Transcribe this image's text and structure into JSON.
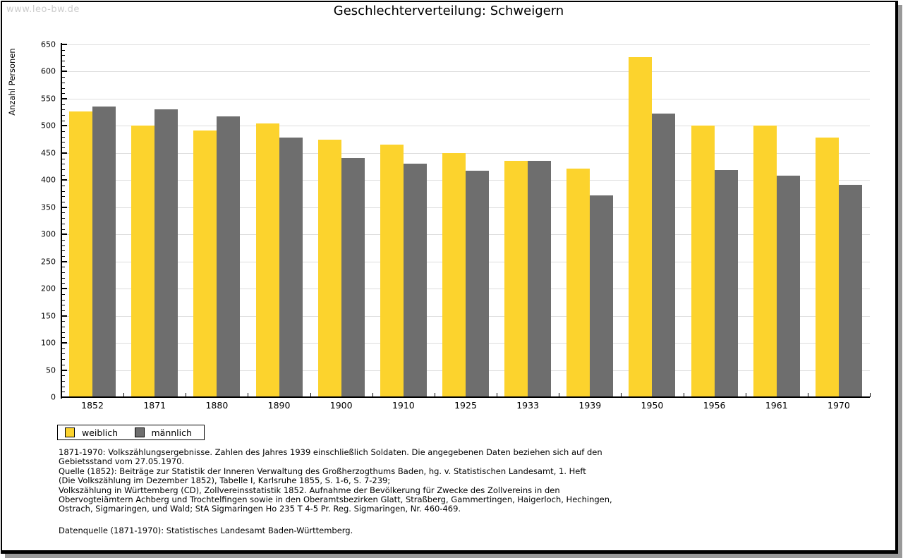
{
  "page": {
    "watermark": "www.leo-bw.de",
    "title": "Geschlechterverteilung: Schweigern"
  },
  "chart_data": {
    "type": "bar",
    "title": "Geschlechterverteilung: Schweigern",
    "xlabel": "",
    "ylabel": "Anzahl Personen",
    "ylim": [
      0,
      650
    ],
    "ytick_step": 50,
    "yminor_step": 10,
    "grid": true,
    "legend_position": "bottom-left",
    "categories": [
      "1852",
      "1871",
      "1880",
      "1890",
      "1900",
      "1910",
      "1925",
      "1933",
      "1939",
      "1950",
      "1956",
      "1961",
      "1970"
    ],
    "series": [
      {
        "name": "weiblich",
        "color": "#FCD32D",
        "values": [
          526,
          500,
          491,
          504,
          474,
          466,
          450,
          436,
          421,
          626,
          501,
          500,
          478
        ]
      },
      {
        "name": "männlich",
        "color": "#6E6E6E",
        "values": [
          535,
          531,
          518,
          478,
          441,
          430,
          417,
          435,
          372,
          523,
          419,
          408,
          391
        ]
      }
    ]
  },
  "legend": {
    "items": [
      {
        "label": "weiblich",
        "color": "#FCD32D"
      },
      {
        "label": "männlich",
        "color": "#6E6E6E"
      }
    ]
  },
  "footer": {
    "notes": [
      "1871-1970: Volkszählungsergebnisse. Zahlen des Jahres 1939 einschließlich Soldaten. Die angegebenen Daten beziehen sich auf den",
      "Gebietsstand vom 27.05.1970.",
      "Quelle (1852): Beiträge zur Statistik der Inneren Verwaltung des Großherzogthums Baden, hg. v. Statistischen Landesamt, 1. Heft",
      "(Die Volkszählung im Dezember 1852), Tabelle I, Karlsruhe 1855, S. 1-6, S. 7-239;",
      "Volkszählung in Württemberg (CD), Zollvereinsstatistik 1852. Aufnahme der Bevölkerung für Zwecke des Zollvereins in den",
      "Obervogteiämtern Achberg und Trochtelfingen sowie in den Oberamtsbezirken Glatt, Straßberg, Gammertingen, Haigerloch, Hechingen,",
      "Ostrach, Sigmaringen, und Wald; StA Sigmaringen Ho 235 T 4-5 Pr. Reg. Sigmaringen, Nr. 460-469."
    ],
    "datasource": "Datenquelle (1871-1970): Statistisches Landesamt Baden-Württemberg."
  },
  "colors": {
    "grid": "#dddddd",
    "axis": "#000000",
    "watermark": "#cccccc",
    "frame_shadow": "#999999"
  }
}
